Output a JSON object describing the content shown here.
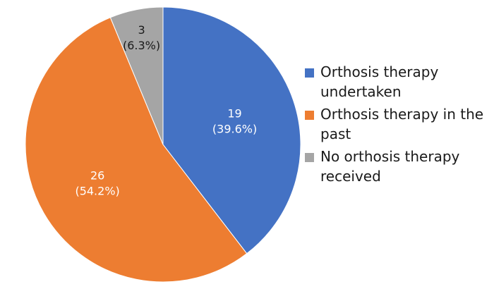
{
  "chart_data": {
    "type": "pie",
    "slices": [
      {
        "name": "Orthosis therapy undertaken",
        "value": 19,
        "value_label": "19",
        "percent_label": "(39.6%)",
        "color": "#4472C4"
      },
      {
        "name": "Orthosis therapy in the past",
        "value": 26,
        "value_label": "26",
        "percent_label": "(54.2%)",
        "color": "#ED7D31"
      },
      {
        "name": "No orthosis therapy received",
        "value": 3,
        "value_label": "3",
        "percent_label": "(6.3%)",
        "color": "#A5A5A5"
      }
    ],
    "start_angle": "12 o'clock",
    "direction": "clockwise",
    "legend_position": "right",
    "title": ""
  },
  "legend": {
    "items": [
      {
        "label": "Orthosis therapy undertaken",
        "color": "#4472C4"
      },
      {
        "label": "Orthosis therapy in the past",
        "color": "#ED7D31"
      },
      {
        "label": "No orthosis therapy received",
        "color": "#A5A5A5"
      }
    ]
  }
}
